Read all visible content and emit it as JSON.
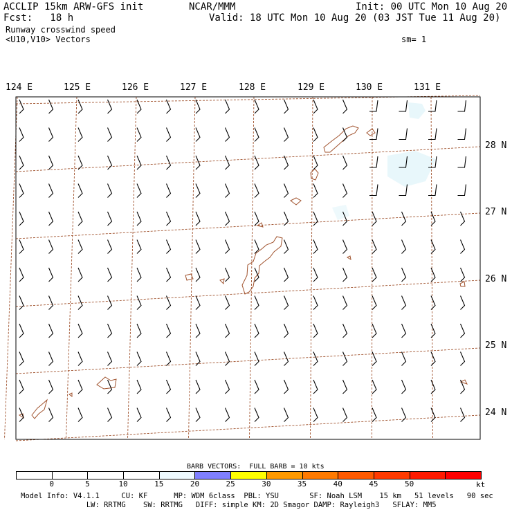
{
  "header": {
    "model_title": "ACCLIP 15km ARW-GFS init",
    "forecast": "Fcst:   18 h",
    "field_name": "Runway crosswind speed",
    "vector_name": "<U10,V10> Vectors",
    "org": "NCAR/MMM",
    "init_time": "Init: 00 UTC Mon 10 Aug 20",
    "valid_time": "Valid: 18 UTC Mon 10 Aug 20 (03 JST Tue 11 Aug 20)",
    "smoothing": "sm= 1"
  },
  "map": {
    "lon_labels": [
      "124 E",
      "125 E",
      "126 E",
      "127 E",
      "128 E",
      "129 E",
      "130 E",
      "131 E"
    ],
    "lat_labels": [
      "28 N",
      "27 N",
      "26 N",
      "25 N",
      "24 N"
    ],
    "colors": {
      "gridline": "#a0522d",
      "coastline": "#a0522d",
      "barb": "#000000",
      "light_shading": "#e8f7fb"
    },
    "barb_note": "BARB VECTORS:  FULL BARB = 10 kts"
  },
  "colorbar": {
    "ticks": [
      "0",
      "5",
      "10",
      "15",
      "20",
      "25",
      "30",
      "35",
      "40",
      "45",
      "50"
    ],
    "unit": "kt",
    "segment_colors": [
      "#ffffff",
      "#ffffff",
      "#ffffff",
      "#ffffff",
      "#eefaff",
      "#8080ff",
      "#ffff00",
      "#ff9900",
      "#ff7a00",
      "#ff5a00",
      "#ff3a00",
      "#ff1a00",
      "#ff0000"
    ]
  },
  "footer": {
    "line1": "Model Info: V4.1.1     CU: KF      MP: WDM 6class  PBL: YSU       SF: Noah LSM    15 km   51 levels   90 sec",
    "line2": "               LW: RRTMG    SW: RRTMG   DIFF: simple KM: 2D Smagor DAMP: Rayleigh3   SFLAY: MM5"
  }
}
